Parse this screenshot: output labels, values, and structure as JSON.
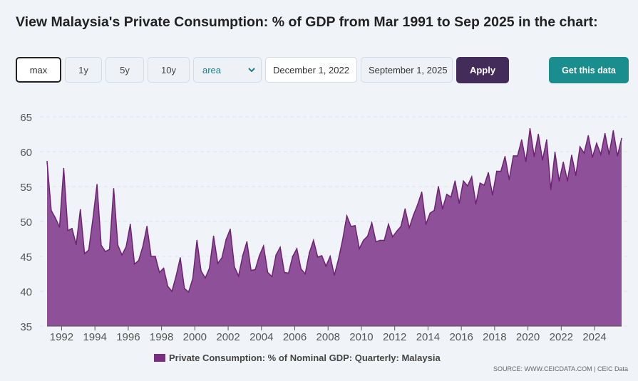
{
  "header": {
    "title": "View Malaysia's Private Consumption: % of GDP from Mar 1991 to Sep 2025 in the chart:"
  },
  "controls": {
    "ranges": [
      "max",
      "1y",
      "5y",
      "10y"
    ],
    "chart_type": "area",
    "start_date": "December 1, 2022",
    "end_date": "September 1, 2025",
    "apply_label": "Apply",
    "get_data_label": "Get this data"
  },
  "colors": {
    "area_fill": "#8e5099",
    "area_line": "#6e2274",
    "apply_bg": "#432c59",
    "get_data_bg": "#1a8e8e"
  },
  "footer": {
    "source": "SOURCE: WWW.CEICDATA.COM | CEIC Data"
  },
  "chart_data": {
    "type": "area",
    "title": "",
    "xlabel": "",
    "ylabel": "",
    "ylim": [
      35,
      65
    ],
    "yticks": [
      35,
      40,
      45,
      50,
      55,
      60,
      65
    ],
    "xticks": [
      1992,
      1994,
      1996,
      1998,
      2000,
      2002,
      2004,
      2006,
      2008,
      2010,
      2012,
      2014,
      2016,
      2018,
      2020,
      2022,
      2024
    ],
    "grid": "horizontal dashed",
    "legend": "bottom-center",
    "x_start": "1991-Q1",
    "x_end": "2025-Q3",
    "frequency": "quarterly",
    "series": [
      {
        "name": "Private Consumption: % of Nominal GDP: Quarterly: Malaysia",
        "values": [
          58.6,
          51.6,
          50.5,
          49.2,
          57.6,
          48.7,
          49.0,
          46.7,
          51.7,
          45.4,
          45.9,
          50.3,
          55.3,
          46.6,
          45.7,
          46.0,
          54.7,
          46.6,
          45.2,
          46.4,
          49.6,
          43.9,
          44.4,
          46.4,
          49.3,
          45.0,
          45.0,
          42.7,
          43.3,
          40.7,
          40.0,
          42.2,
          44.8,
          40.4,
          39.9,
          41.8,
          47.3,
          42.9,
          41.9,
          43.3,
          47.9,
          44.0,
          44.8,
          47.4,
          48.9,
          43.5,
          42.2,
          45.1,
          47.1,
          43.0,
          43.1,
          45.1,
          46.5,
          42.7,
          42.1,
          45.2,
          46.3,
          42.7,
          42.6,
          45.0,
          46.1,
          43.2,
          42.5,
          45.5,
          47.3,
          44.9,
          45.1,
          43.6,
          45.0,
          42.3,
          44.6,
          47.4,
          50.8,
          49.3,
          49.4,
          46.1,
          47.3,
          47.9,
          49.8,
          47.1,
          47.3,
          47.3,
          49.6,
          47.8,
          48.6,
          49.3,
          51.8,
          49.1,
          50.9,
          52.4,
          54.2,
          49.6,
          51.2,
          51.6,
          55.0,
          51.8,
          53.9,
          53.5,
          55.8,
          52.6,
          55.8,
          55.1,
          56.4,
          52.5,
          55.5,
          55.2,
          57.0,
          53.8,
          57.2,
          57.2,
          59.3,
          56.0,
          59.4,
          59.4,
          61.7,
          58.6,
          63.3,
          59.3,
          62.5,
          58.8,
          61.7,
          54.6,
          59.9,
          55.8,
          58.5,
          55.8,
          59.5,
          56.6,
          60.7,
          59.8,
          62.3,
          59.2,
          61.2,
          59.6,
          62.6,
          59.6,
          63.0,
          59.4,
          61.9
        ]
      }
    ]
  }
}
